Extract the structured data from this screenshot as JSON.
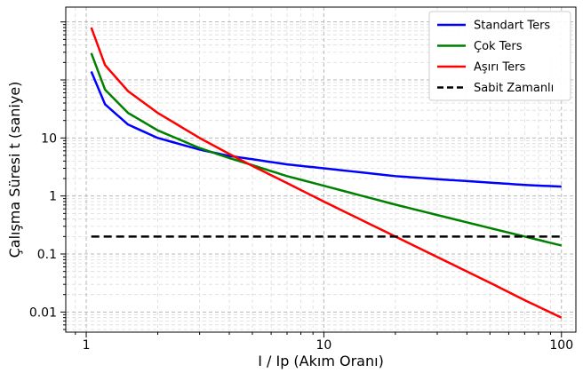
{
  "chart_data": {
    "type": "line",
    "title": "",
    "xlabel": "I / Ip (Akım Oranı)",
    "ylabel": "Çalışma Süresi t (saniye)",
    "xscale": "log",
    "yscale": "log",
    "xlim": [
      0.82,
      115
    ],
    "ylim": [
      0.0045,
      1800
    ],
    "grid": true,
    "legend_position": "top-right",
    "x_ticks": [
      {
        "value": 1,
        "label": "1"
      },
      {
        "value": 10,
        "label": "10"
      },
      {
        "value": 100,
        "label": "100"
      }
    ],
    "y_ticks": [
      {
        "value": 0.01,
        "label": "0.01"
      },
      {
        "value": 0.1,
        "label": "0.1"
      },
      {
        "value": 1,
        "label": "1"
      },
      {
        "value": 10,
        "label": "10"
      }
    ],
    "series": [
      {
        "name": "Standart Ters",
        "color": "#0000ff",
        "x": [
          1.05,
          1.2,
          1.5,
          2,
          3,
          4,
          5,
          7,
          10,
          20,
          30,
          50,
          70,
          100
        ],
        "y": [
          140,
          38,
          17,
          10,
          6.3,
          4.9,
          4.3,
          3.5,
          3.0,
          2.2,
          1.95,
          1.7,
          1.55,
          1.45
        ]
      },
      {
        "name": "Çok Ters",
        "color": "#008000",
        "x": [
          1.05,
          1.2,
          1.5,
          2,
          3,
          4,
          5,
          7,
          10,
          20,
          30,
          50,
          70,
          100
        ],
        "y": [
          290,
          68,
          27,
          13.5,
          6.7,
          4.5,
          3.4,
          2.2,
          1.5,
          0.71,
          0.47,
          0.28,
          0.2,
          0.14
        ]
      },
      {
        "name": "Aşırı Ters",
        "color": "#ff0000",
        "x": [
          1.05,
          1.2,
          1.5,
          2,
          3,
          4,
          5,
          7,
          10,
          20,
          30,
          50,
          70,
          100
        ],
        "y": [
          800,
          180,
          64,
          27,
          10,
          5.3,
          3.3,
          1.67,
          0.8,
          0.2,
          0.089,
          0.032,
          0.016,
          0.008
        ]
      },
      {
        "name": "Sabit Zamanlı",
        "color": "#000000",
        "dashed": true,
        "x": [
          1.05,
          100
        ],
        "y": [
          0.2,
          0.2
        ]
      }
    ]
  }
}
